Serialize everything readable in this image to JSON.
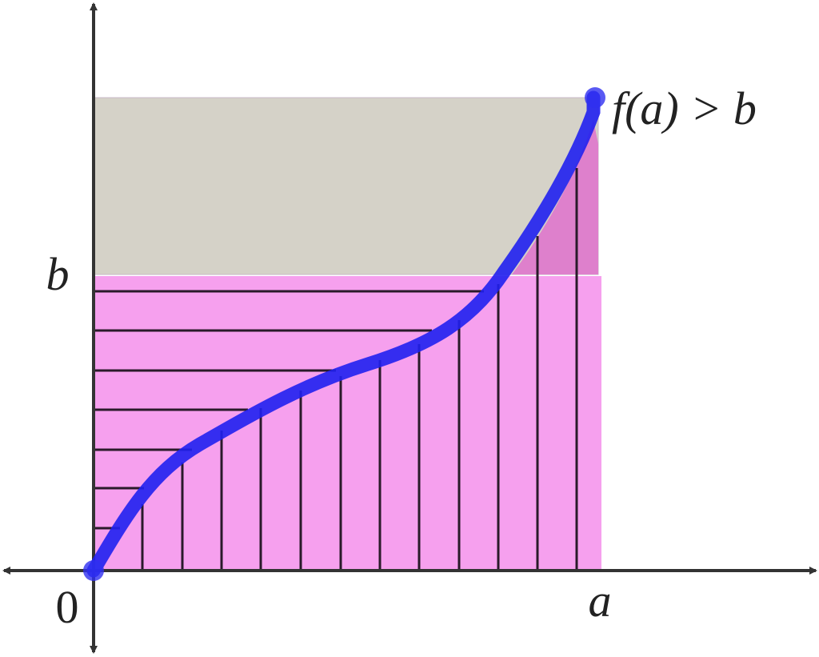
{
  "labels": {
    "b": "b",
    "origin": "0",
    "a": "a",
    "condition": "f(a) > b"
  }
}
